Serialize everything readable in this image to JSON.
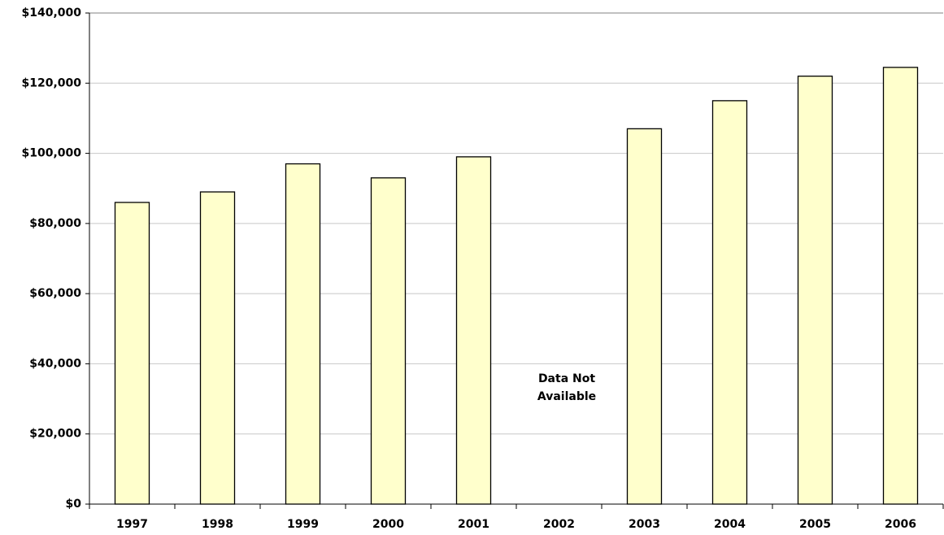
{
  "chart_data": {
    "type": "bar",
    "categories": [
      "1997",
      "1998",
      "1999",
      "2000",
      "2001",
      "2002",
      "2003",
      "2004",
      "2005",
      "2006"
    ],
    "values": [
      86000,
      89000,
      97000,
      93000,
      99000,
      null,
      107000,
      115000,
      122000,
      124500
    ],
    "color": "#ffffcc",
    "annotation": "Data Not Available",
    "ylim": [
      0,
      140000
    ],
    "yticks": [
      {
        "value": 0,
        "label": "$0"
      },
      {
        "value": 20000,
        "label": "$20,000"
      },
      {
        "value": 40000,
        "label": "$40,000"
      },
      {
        "value": 60000,
        "label": "$60,000"
      },
      {
        "value": 80000,
        "label": "$80,000"
      },
      {
        "value": 100000,
        "label": "$100,000"
      },
      {
        "value": 120000,
        "label": "$120,000"
      },
      {
        "value": 140000,
        "label": "$140,000"
      }
    ],
    "grid": true
  }
}
